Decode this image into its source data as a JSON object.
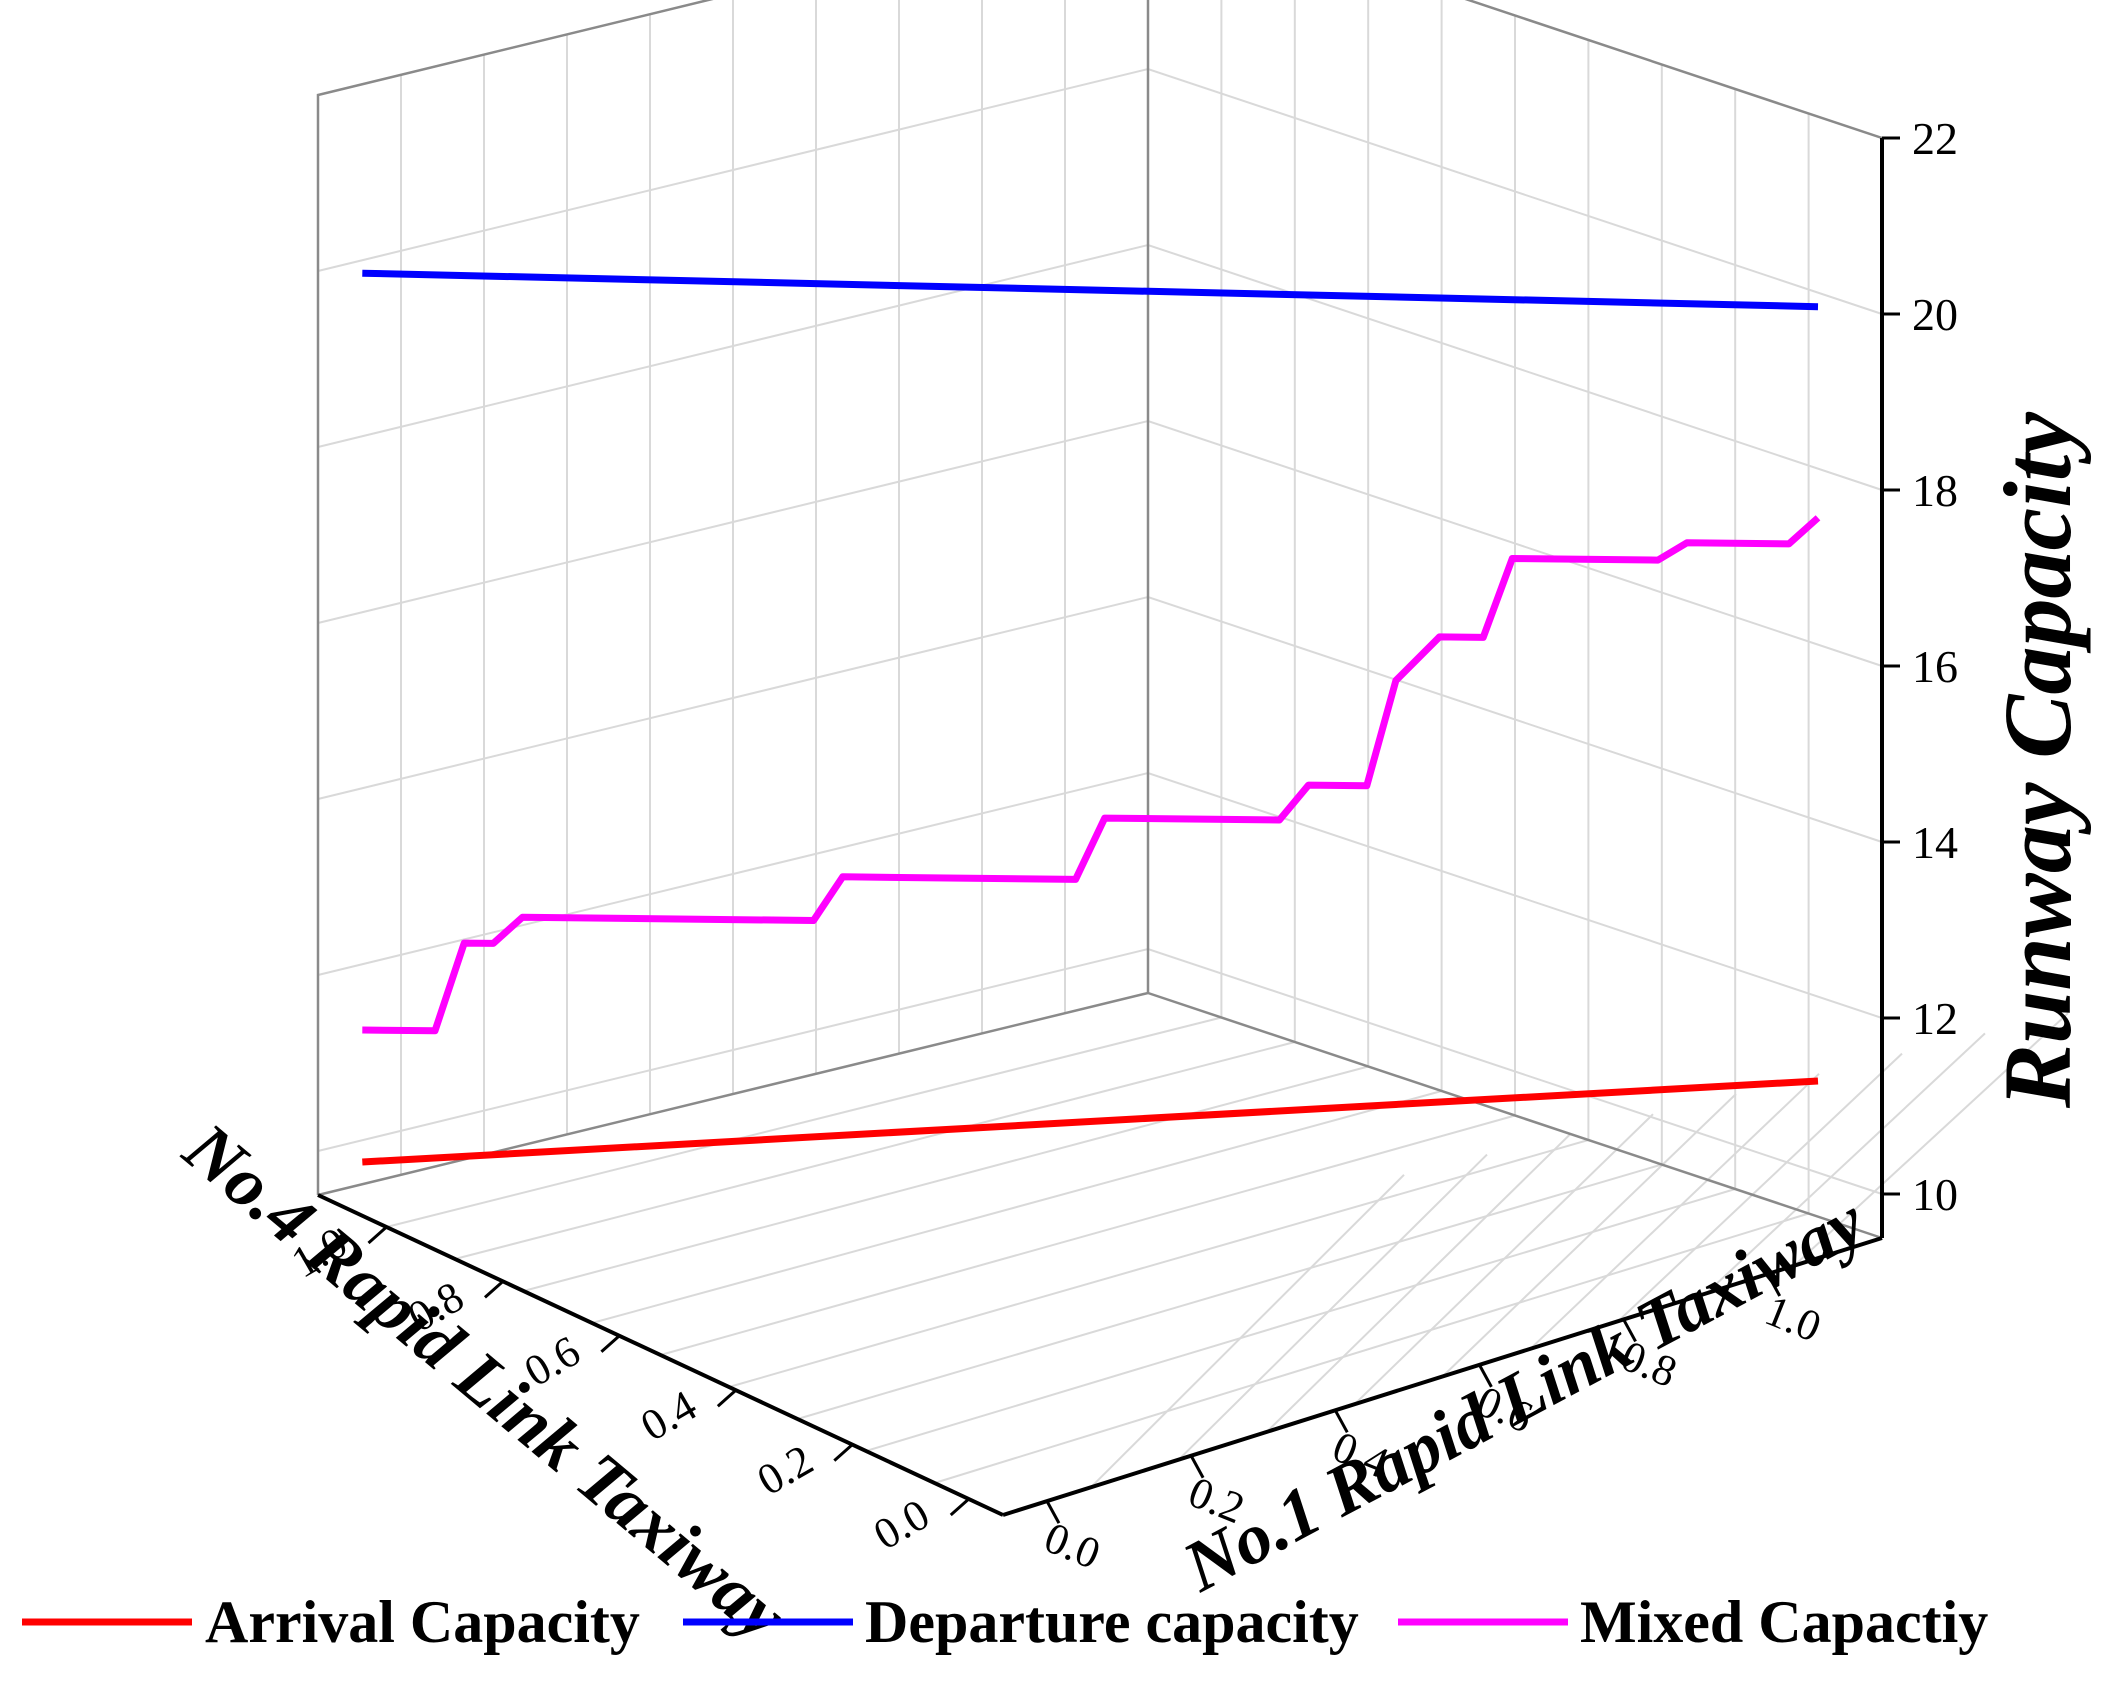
{
  "chart_data": {
    "type": "line",
    "zlabel": "Runway Capacity",
    "x1label": "No.1 Rapid Link Taxiway",
    "x2label": "No.4 Rapid Link Taxiway",
    "z_ticks": [
      "10",
      "12",
      "14",
      "16",
      "18",
      "20",
      "22"
    ],
    "x1_ticks": [
      "0.0",
      "0.2",
      "0.4",
      "0.6",
      "0.8",
      "1.0"
    ],
    "x2_ticks": [
      "0.0",
      "0.2",
      "0.4",
      "0.6",
      "0.8",
      "1.0"
    ],
    "zlim": [
      9.5,
      22
    ],
    "grid": true,
    "legend_position": "bottom",
    "series": [
      {
        "name": "Arrival Capacity",
        "color": "#ff0000",
        "trend": "increasing",
        "points": [
          [
            0,
            10.0
          ],
          [
            1,
            11.1
          ]
        ]
      },
      {
        "name": "Departure capacity",
        "color": "#0000ff",
        "trend": "decreasing",
        "points": [
          [
            0,
            20.1
          ],
          [
            1,
            19.9
          ]
        ]
      },
      {
        "name": "Mixed Capactiy",
        "color": "#ff00ff",
        "trend": "stepwise increasing",
        "points": [
          [
            0.0,
            11.5
          ],
          [
            0.05,
            11.5
          ],
          [
            0.07,
            12.5
          ],
          [
            0.09,
            12.5
          ],
          [
            0.11,
            12.8
          ],
          [
            0.31,
            12.8
          ],
          [
            0.33,
            13.3
          ],
          [
            0.49,
            13.3
          ],
          [
            0.51,
            14.0
          ],
          [
            0.63,
            14.0
          ],
          [
            0.65,
            14.4
          ],
          [
            0.69,
            14.4
          ],
          [
            0.71,
            15.6
          ],
          [
            0.74,
            16.1
          ],
          [
            0.77,
            16.1
          ],
          [
            0.79,
            17.0
          ],
          [
            0.89,
            17.0
          ],
          [
            0.91,
            17.2
          ],
          [
            0.98,
            17.2
          ],
          [
            1.0,
            17.5
          ]
        ]
      }
    ]
  }
}
